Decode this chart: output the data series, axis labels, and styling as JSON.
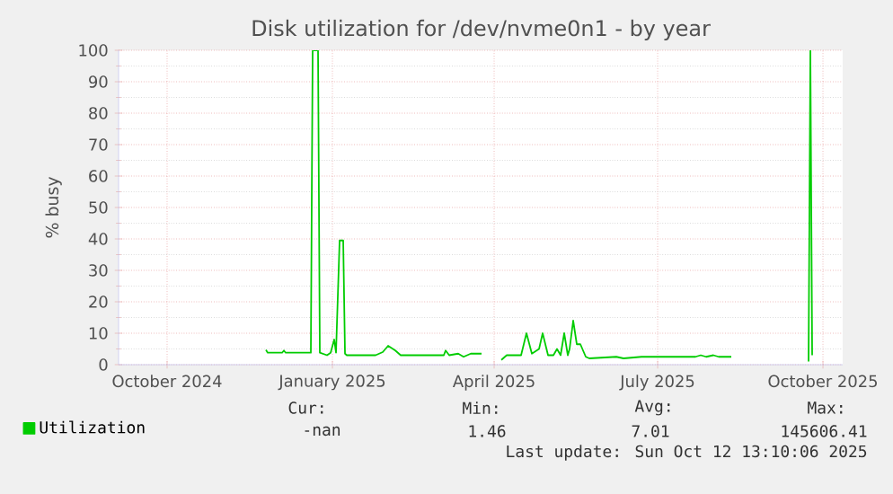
{
  "chart_data": {
    "type": "line",
    "title": "Disk utilization for /dev/nvme0n1 - by year",
    "ylabel": "% busy",
    "xlim": [
      "2024-09-04",
      "2025-10-12"
    ],
    "xticks": [
      {
        "value": "2024-10-01",
        "label": "October 2024"
      },
      {
        "value": "2025-01-01",
        "label": "January 2025"
      },
      {
        "value": "2025-04-01",
        "label": "April 2025"
      },
      {
        "value": "2025-07-01",
        "label": "July 2025"
      },
      {
        "value": "2025-10-01",
        "label": "October 2025"
      }
    ],
    "ylim": [
      0,
      100
    ],
    "yticks": [
      0,
      10,
      20,
      30,
      40,
      50,
      60,
      70,
      80,
      90,
      100
    ],
    "grid": true,
    "legend": "bottom left",
    "x": [
      "2024-11-25",
      "2024-11-26",
      "2024-12-04",
      "2024-12-05",
      "2024-12-06",
      "2024-12-20",
      "2024-12-21",
      "2024-12-24",
      "2024-12-25",
      "2024-12-29",
      "2024-12-31",
      "2025-01-02",
      "2025-01-03",
      "2025-01-05",
      "2025-01-07",
      "2025-01-08",
      "2025-01-09",
      "2025-01-25",
      "2025-01-29",
      "2025-02-01",
      "2025-02-05",
      "2025-02-08",
      "2025-03-04",
      "2025-03-05",
      "2025-03-07",
      "2025-03-12",
      "2025-03-15",
      "2025-03-19",
      "2025-03-25",
      "2025-03-31",
      "2025-04-05",
      "2025-04-08",
      "2025-04-16",
      "2025-04-19",
      "2025-04-22",
      "2025-04-26",
      "2025-04-28",
      "2025-05-01",
      "2025-05-04",
      "2025-05-06",
      "2025-05-08",
      "2025-05-10",
      "2025-05-12",
      "2025-05-13",
      "2025-05-15",
      "2025-05-17",
      "2025-05-19",
      "2025-05-22",
      "2025-05-24",
      "2025-06-08",
      "2025-06-12",
      "2025-06-22",
      "2025-07-22",
      "2025-07-25",
      "2025-07-28",
      "2025-08-01",
      "2025-08-04",
      "2025-08-11",
      "2025-08-25",
      "2025-09-23",
      "2025-09-24",
      "2025-09-25"
    ],
    "series": [
      {
        "name": "Utilization",
        "color": "#00cc00",
        "values": [
          4.7,
          3.8,
          3.8,
          4.5,
          3.8,
          3.8,
          100,
          100,
          3.8,
          3,
          3.8,
          8,
          3.8,
          39.5,
          39.5,
          3.5,
          3,
          3,
          4,
          6,
          4.5,
          3,
          3,
          4.5,
          3,
          3.5,
          2.5,
          3.5,
          3.5,
          null,
          1.5,
          3,
          3,
          10,
          3.5,
          5,
          10,
          3,
          3,
          5,
          3,
          10,
          3,
          5,
          14,
          6.5,
          6.5,
          2.5,
          2,
          2.5,
          2,
          2.5,
          2.5,
          3,
          2.5,
          3,
          2.5,
          2.5,
          null,
          1,
          100,
          3
        ]
      }
    ],
    "annotations": [
      "Cur:",
      "Min:",
      "Avg:",
      "Max:",
      "-nan",
      "1.46",
      "7.01",
      "145606.41",
      "Last update: Sun Oct 12 13:10:06 2025"
    ]
  }
}
